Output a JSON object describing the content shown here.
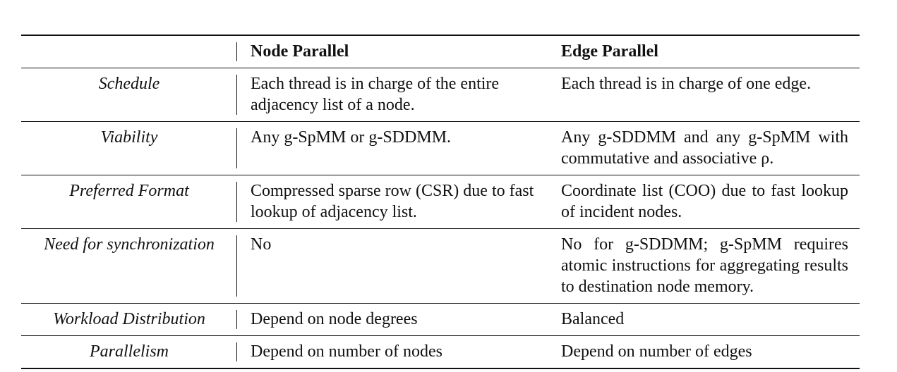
{
  "table": {
    "headers": [
      "",
      "Node Parallel",
      "Edge Parallel"
    ],
    "rows": [
      {
        "label": "Schedule",
        "node": "Each thread is in charge of the entire adjacency list of a node.",
        "edge": "Each thread is in charge of one edge."
      },
      {
        "label": "Viability",
        "node": "Any g-SpMM or g-SDDMM.",
        "edge": "Any g-SDDMM and any g-SpMM with commutative and associative ρ."
      },
      {
        "label": "Preferred Format",
        "node": "Compressed sparse row (CSR) due to fast lookup of adjacency list.",
        "edge": "Coordinate list (COO) due to fast lookup of incident nodes."
      },
      {
        "label": "Need for synchronization",
        "node": "No",
        "edge": "No for g-SDDMM; g-SpMM requires atomic instructions for aggregating results to destination node memory."
      },
      {
        "label": "Workload Distribution",
        "node": "Depend on node degrees",
        "edge": "Balanced"
      },
      {
        "label": "Parallelism",
        "node": "Depend on number of nodes",
        "edge": "Depend on number of edges"
      }
    ]
  }
}
